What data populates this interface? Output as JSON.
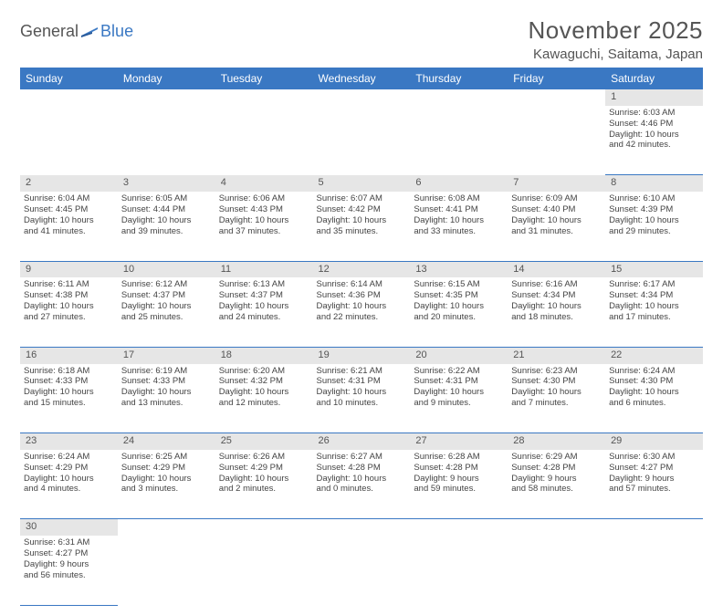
{
  "logo": {
    "part1": "General",
    "part2": "Blue"
  },
  "title": "November 2025",
  "location": "Kawaguchi, Saitama, Japan",
  "colors": {
    "header_bg": "#3a78c3",
    "header_text": "#ffffff",
    "daynum_bg": "#e6e6e6",
    "border": "#3a78c3",
    "text": "#444444",
    "title_text": "#555555"
  },
  "day_headers": [
    "Sunday",
    "Monday",
    "Tuesday",
    "Wednesday",
    "Thursday",
    "Friday",
    "Saturday"
  ],
  "weeks": [
    [
      null,
      null,
      null,
      null,
      null,
      null,
      {
        "n": "1",
        "sr": "Sunrise: 6:03 AM",
        "ss": "Sunset: 4:46 PM",
        "d1": "Daylight: 10 hours",
        "d2": "and 42 minutes."
      }
    ],
    [
      {
        "n": "2",
        "sr": "Sunrise: 6:04 AM",
        "ss": "Sunset: 4:45 PM",
        "d1": "Daylight: 10 hours",
        "d2": "and 41 minutes."
      },
      {
        "n": "3",
        "sr": "Sunrise: 6:05 AM",
        "ss": "Sunset: 4:44 PM",
        "d1": "Daylight: 10 hours",
        "d2": "and 39 minutes."
      },
      {
        "n": "4",
        "sr": "Sunrise: 6:06 AM",
        "ss": "Sunset: 4:43 PM",
        "d1": "Daylight: 10 hours",
        "d2": "and 37 minutes."
      },
      {
        "n": "5",
        "sr": "Sunrise: 6:07 AM",
        "ss": "Sunset: 4:42 PM",
        "d1": "Daylight: 10 hours",
        "d2": "and 35 minutes."
      },
      {
        "n": "6",
        "sr": "Sunrise: 6:08 AM",
        "ss": "Sunset: 4:41 PM",
        "d1": "Daylight: 10 hours",
        "d2": "and 33 minutes."
      },
      {
        "n": "7",
        "sr": "Sunrise: 6:09 AM",
        "ss": "Sunset: 4:40 PM",
        "d1": "Daylight: 10 hours",
        "d2": "and 31 minutes."
      },
      {
        "n": "8",
        "sr": "Sunrise: 6:10 AM",
        "ss": "Sunset: 4:39 PM",
        "d1": "Daylight: 10 hours",
        "d2": "and 29 minutes."
      }
    ],
    [
      {
        "n": "9",
        "sr": "Sunrise: 6:11 AM",
        "ss": "Sunset: 4:38 PM",
        "d1": "Daylight: 10 hours",
        "d2": "and 27 minutes."
      },
      {
        "n": "10",
        "sr": "Sunrise: 6:12 AM",
        "ss": "Sunset: 4:37 PM",
        "d1": "Daylight: 10 hours",
        "d2": "and 25 minutes."
      },
      {
        "n": "11",
        "sr": "Sunrise: 6:13 AM",
        "ss": "Sunset: 4:37 PM",
        "d1": "Daylight: 10 hours",
        "d2": "and 24 minutes."
      },
      {
        "n": "12",
        "sr": "Sunrise: 6:14 AM",
        "ss": "Sunset: 4:36 PM",
        "d1": "Daylight: 10 hours",
        "d2": "and 22 minutes."
      },
      {
        "n": "13",
        "sr": "Sunrise: 6:15 AM",
        "ss": "Sunset: 4:35 PM",
        "d1": "Daylight: 10 hours",
        "d2": "and 20 minutes."
      },
      {
        "n": "14",
        "sr": "Sunrise: 6:16 AM",
        "ss": "Sunset: 4:34 PM",
        "d1": "Daylight: 10 hours",
        "d2": "and 18 minutes."
      },
      {
        "n": "15",
        "sr": "Sunrise: 6:17 AM",
        "ss": "Sunset: 4:34 PM",
        "d1": "Daylight: 10 hours",
        "d2": "and 17 minutes."
      }
    ],
    [
      {
        "n": "16",
        "sr": "Sunrise: 6:18 AM",
        "ss": "Sunset: 4:33 PM",
        "d1": "Daylight: 10 hours",
        "d2": "and 15 minutes."
      },
      {
        "n": "17",
        "sr": "Sunrise: 6:19 AM",
        "ss": "Sunset: 4:33 PM",
        "d1": "Daylight: 10 hours",
        "d2": "and 13 minutes."
      },
      {
        "n": "18",
        "sr": "Sunrise: 6:20 AM",
        "ss": "Sunset: 4:32 PM",
        "d1": "Daylight: 10 hours",
        "d2": "and 12 minutes."
      },
      {
        "n": "19",
        "sr": "Sunrise: 6:21 AM",
        "ss": "Sunset: 4:31 PM",
        "d1": "Daylight: 10 hours",
        "d2": "and 10 minutes."
      },
      {
        "n": "20",
        "sr": "Sunrise: 6:22 AM",
        "ss": "Sunset: 4:31 PM",
        "d1": "Daylight: 10 hours",
        "d2": "and 9 minutes."
      },
      {
        "n": "21",
        "sr": "Sunrise: 6:23 AM",
        "ss": "Sunset: 4:30 PM",
        "d1": "Daylight: 10 hours",
        "d2": "and 7 minutes."
      },
      {
        "n": "22",
        "sr": "Sunrise: 6:24 AM",
        "ss": "Sunset: 4:30 PM",
        "d1": "Daylight: 10 hours",
        "d2": "and 6 minutes."
      }
    ],
    [
      {
        "n": "23",
        "sr": "Sunrise: 6:24 AM",
        "ss": "Sunset: 4:29 PM",
        "d1": "Daylight: 10 hours",
        "d2": "and 4 minutes."
      },
      {
        "n": "24",
        "sr": "Sunrise: 6:25 AM",
        "ss": "Sunset: 4:29 PM",
        "d1": "Daylight: 10 hours",
        "d2": "and 3 minutes."
      },
      {
        "n": "25",
        "sr": "Sunrise: 6:26 AM",
        "ss": "Sunset: 4:29 PM",
        "d1": "Daylight: 10 hours",
        "d2": "and 2 minutes."
      },
      {
        "n": "26",
        "sr": "Sunrise: 6:27 AM",
        "ss": "Sunset: 4:28 PM",
        "d1": "Daylight: 10 hours",
        "d2": "and 0 minutes."
      },
      {
        "n": "27",
        "sr": "Sunrise: 6:28 AM",
        "ss": "Sunset: 4:28 PM",
        "d1": "Daylight: 9 hours",
        "d2": "and 59 minutes."
      },
      {
        "n": "28",
        "sr": "Sunrise: 6:29 AM",
        "ss": "Sunset: 4:28 PM",
        "d1": "Daylight: 9 hours",
        "d2": "and 58 minutes."
      },
      {
        "n": "29",
        "sr": "Sunrise: 6:30 AM",
        "ss": "Sunset: 4:27 PM",
        "d1": "Daylight: 9 hours",
        "d2": "and 57 minutes."
      }
    ],
    [
      {
        "n": "30",
        "sr": "Sunrise: 6:31 AM",
        "ss": "Sunset: 4:27 PM",
        "d1": "Daylight: 9 hours",
        "d2": "and 56 minutes."
      },
      null,
      null,
      null,
      null,
      null,
      null
    ]
  ]
}
